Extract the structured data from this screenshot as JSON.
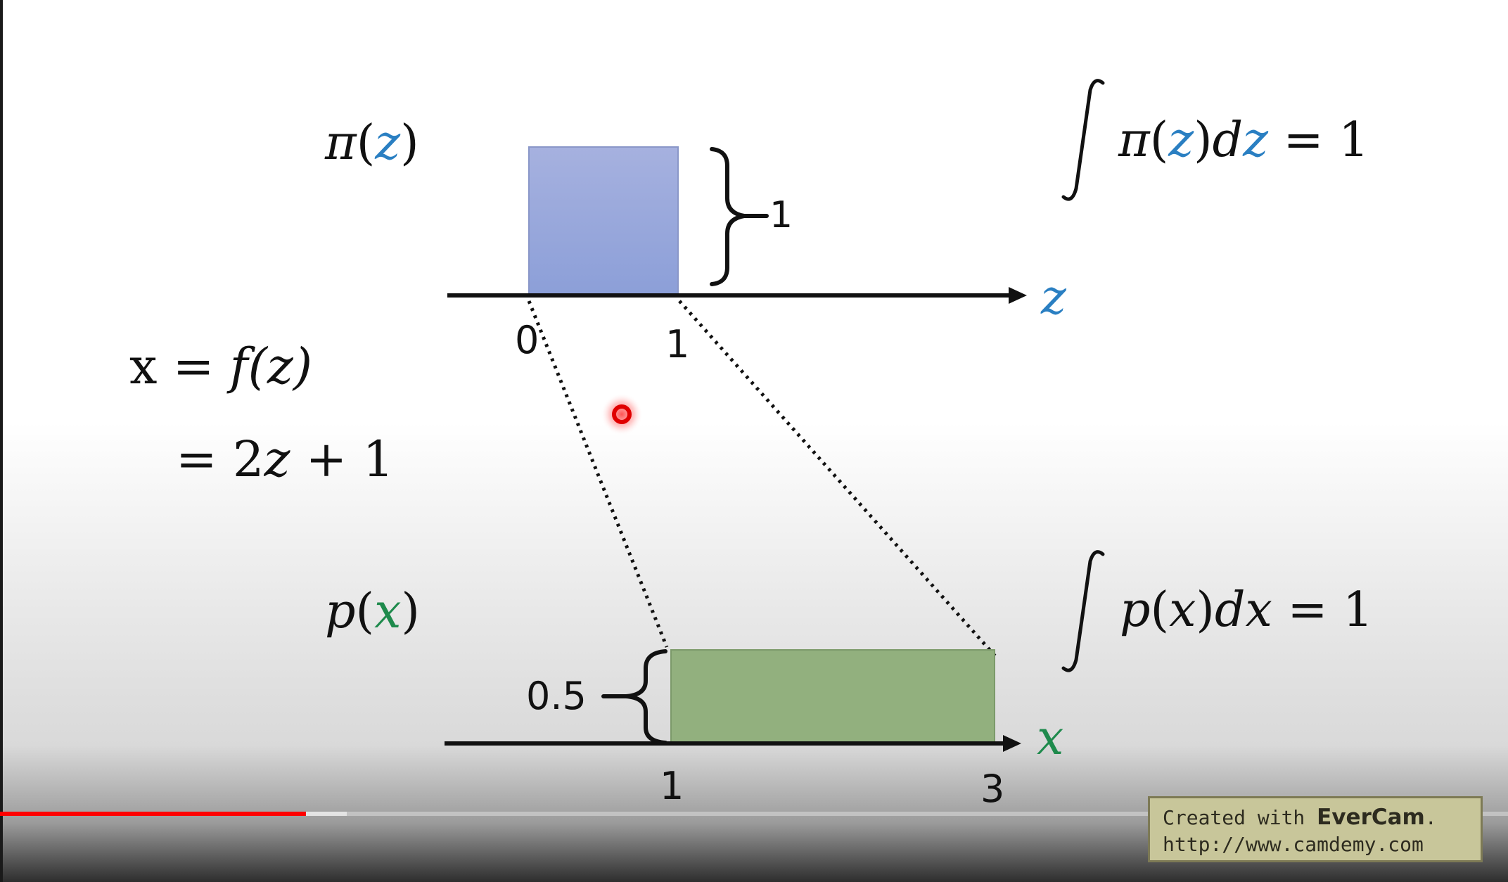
{
  "slide": {
    "top": {
      "func": [
        "π",
        "(",
        "z",
        ")"
      ],
      "integral": [
        "∫",
        "π",
        "(",
        "z",
        ")",
        "d",
        "z",
        "= 1"
      ],
      "height_label": "1",
      "axis_label": "z",
      "ticks": [
        "0",
        "1"
      ]
    },
    "mapping": {
      "line1": "x = ",
      "f": "f",
      "line1_arg": "(z)",
      "line2_eq": "= 2",
      "line2_var": "z",
      "line2_rest": " + 1"
    },
    "bottom": {
      "func": [
        "p",
        "(",
        "x",
        ")"
      ],
      "integral": [
        "∫",
        "p",
        "(",
        "x",
        ")",
        "d",
        "x",
        "= 1"
      ],
      "height_label": "0.5",
      "axis_label": "x",
      "ticks": [
        "1",
        "3"
      ]
    },
    "colors": {
      "z": "#2a7fc2",
      "x": "#1e8a4c",
      "top_box": "#9eacdc",
      "bottom_box": "#92b07e"
    }
  },
  "player": {
    "played_fraction": 0.203,
    "buffered_fraction": 0.23,
    "cursor_icon": "laser-pointer-icon"
  },
  "watermark": {
    "prefix": "Created with ",
    "brand": "EverCam",
    "suffix": ".",
    "url": "http://www.camdemy.com"
  }
}
